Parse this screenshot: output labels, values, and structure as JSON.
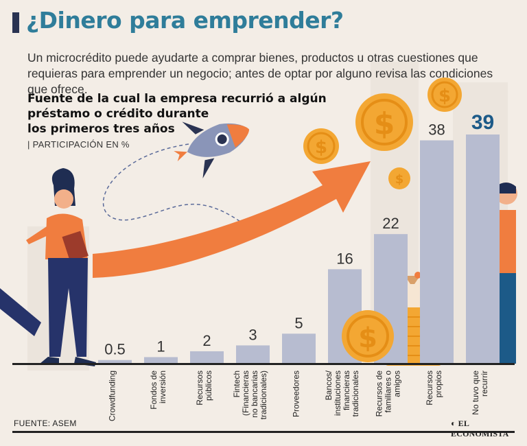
{
  "header": {
    "title": "¿Dinero para emprender?",
    "intro": "Un microcrédito puede ayudarte a comprar bienes, productos u otras cuestiones que requieras para emprender un negocio; antes de optar por alguno revisa las condiciones que ofrece.",
    "subtitle_lines": [
      "Fuente de la cual la empresa recurrió a algún",
      "préstamo o crédito durante",
      "los primeros tres años"
    ],
    "unit": "| PARTICIPACIÓN EN %"
  },
  "footer": {
    "source": "FUENTE: ASEM",
    "brand": "EL ECONOMISTA"
  },
  "colors": {
    "background": "#f3ede6",
    "bar": "#b7bcd0",
    "highlight": "#1c5a88",
    "title": "#2f7d9a",
    "arrow": "#f07d3f",
    "coin": "#f3a733"
  },
  "chart_data": {
    "type": "bar",
    "title": "Fuente de la cual la empresa recurrió a algún préstamo o crédito durante los primeros tres años",
    "ylabel": "PARTICIPACIÓN EN %",
    "ylim": [
      0,
      40
    ],
    "grid": false,
    "categories": [
      [
        "Crowdfunding"
      ],
      [
        "Fondos de",
        "inversión"
      ],
      [
        "Recursos",
        "públicos"
      ],
      [
        "Fintech",
        "(Financieras",
        "no bancarias",
        "tradicionales)"
      ],
      [
        "Proveedores"
      ],
      [
        "Bancos/",
        "instituciones",
        "financieras",
        "tradicionales"
      ],
      [
        "Recursos de",
        "familiares o",
        "amigos"
      ],
      [
        "Recursos",
        "propios"
      ],
      [
        "No tuvo que",
        "recurrir"
      ]
    ],
    "values": [
      0.5,
      1,
      2,
      3,
      5,
      16,
      22,
      38,
      39
    ],
    "value_labels": [
      "0.5",
      "1",
      "2",
      "3",
      "5",
      "16",
      "22",
      "38",
      "39"
    ],
    "highlighted": [
      false,
      false,
      false,
      false,
      false,
      false,
      false,
      false,
      true
    ]
  }
}
